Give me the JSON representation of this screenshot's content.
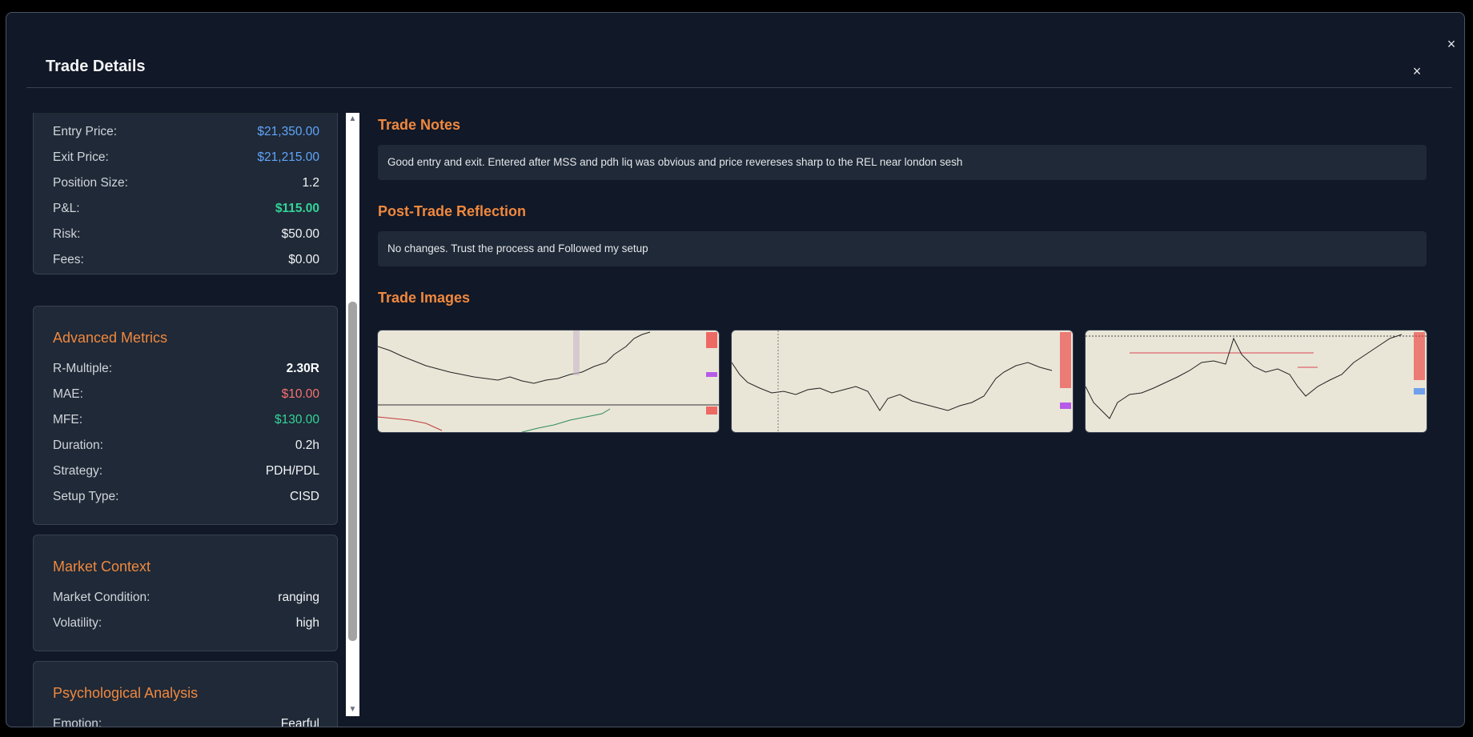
{
  "modal": {
    "title": "Trade Details",
    "outer_close_icon": "×",
    "inner_close_icon": "×"
  },
  "price_details": {
    "rows": [
      {
        "label": "Entry Price:",
        "value": "$21,350.00",
        "color": "#60a5fa"
      },
      {
        "label": "Exit Price:",
        "value": "$21,215.00",
        "color": "#60a5fa"
      },
      {
        "label": "Position Size:",
        "value": "1.2",
        "color": "#f3f4f6"
      },
      {
        "label": "P&L:",
        "value": "$115.00",
        "color": "#34d399"
      },
      {
        "label": "Risk:",
        "value": "$50.00",
        "color": "#f3f4f6"
      },
      {
        "label": "Fees:",
        "value": "$0.00",
        "color": "#f3f4f6"
      }
    ]
  },
  "advanced_metrics": {
    "title": "Advanced Metrics",
    "rows": [
      {
        "label": "R-Multiple:",
        "value": "2.30R",
        "color": "#ffffff"
      },
      {
        "label": "MAE:",
        "value": "$10.00",
        "color": "#f87171"
      },
      {
        "label": "MFE:",
        "value": "$130.00",
        "color": "#34d399"
      },
      {
        "label": "Duration:",
        "value": "0.2h",
        "color": "#f3f4f6"
      },
      {
        "label": "Strategy:",
        "value": "PDH/PDL",
        "color": "#f3f4f6"
      },
      {
        "label": "Setup Type:",
        "value": "CISD",
        "color": "#f3f4f6"
      }
    ]
  },
  "market_context": {
    "title": "Market Context",
    "rows": [
      {
        "label": "Market Condition:",
        "value": "ranging"
      },
      {
        "label": "Volatility:",
        "value": "high"
      }
    ]
  },
  "psychological_analysis": {
    "title": "Psychological Analysis",
    "rows": [
      {
        "label": "Emotion:",
        "value": "Fearful"
      }
    ]
  },
  "scrollbar": {
    "up_icon": "▲",
    "down_icon": "▼"
  },
  "trade_notes": {
    "title": "Trade Notes",
    "text": "Good entry and exit. Entered after MSS and pdh liq was obvious and price revereses sharp to the REL near london sesh"
  },
  "post_trade_reflection": {
    "title": "Post-Trade Reflection",
    "text": "No changes. Trust the process and Followed my setup"
  },
  "trade_images": {
    "title": "Trade Images",
    "images": [
      {
        "name": "trade-image-1",
        "background": "#e9e6d7"
      },
      {
        "name": "trade-image-2",
        "background": "#e9e6d7"
      },
      {
        "name": "trade-image-3",
        "background": "#e9e6d7"
      }
    ]
  },
  "colors": {
    "background": "#111827",
    "card": "#1f2937",
    "accent": "#f0883e",
    "blue": "#60a5fa",
    "green": "#34d399",
    "red": "#f87171"
  }
}
